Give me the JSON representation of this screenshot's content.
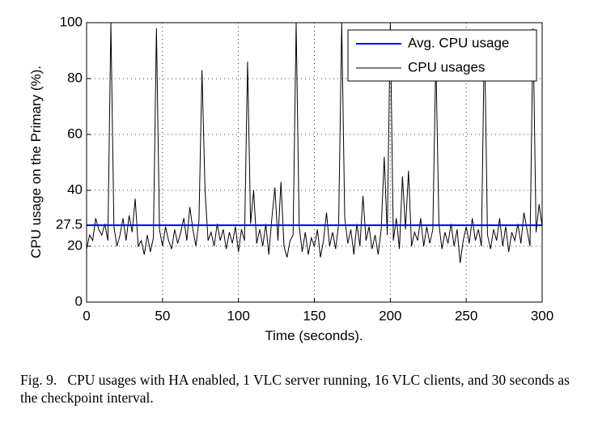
{
  "chart_data": {
    "type": "line",
    "xlabel": "Time (seconds).",
    "ylabel": "CPU usage on the Primary (%).",
    "xlim": [
      0,
      300
    ],
    "ylim": [
      0,
      100
    ],
    "xticks": [
      0,
      50,
      100,
      150,
      200,
      250,
      300
    ],
    "yticks": [
      0,
      20,
      27.5,
      40,
      60,
      80,
      100
    ],
    "grid": true,
    "legend": "upper right",
    "series": [
      {
        "name": "Avg. CPU usage",
        "color": "#0000ff",
        "x": [
          0,
          300
        ],
        "values": [
          27.5,
          27.5
        ]
      },
      {
        "name": "CPU usages",
        "color": "#000000",
        "x": [
          0,
          2,
          4,
          6,
          8,
          10,
          12,
          14,
          16,
          18,
          20,
          22,
          24,
          26,
          28,
          30,
          32,
          34,
          36,
          38,
          40,
          42,
          44,
          46,
          48,
          50,
          52,
          54,
          56,
          58,
          60,
          62,
          64,
          66,
          68,
          70,
          72,
          74,
          76,
          78,
          80,
          82,
          84,
          86,
          88,
          90,
          92,
          94,
          96,
          98,
          100,
          102,
          104,
          106,
          108,
          110,
          112,
          114,
          116,
          118,
          120,
          122,
          124,
          126,
          128,
          130,
          132,
          134,
          136,
          138,
          140,
          142,
          144,
          146,
          148,
          150,
          152,
          154,
          156,
          158,
          160,
          162,
          164,
          166,
          168,
          170,
          172,
          174,
          176,
          178,
          180,
          182,
          184,
          186,
          188,
          190,
          192,
          194,
          196,
          198,
          200,
          202,
          204,
          206,
          208,
          210,
          212,
          214,
          216,
          218,
          220,
          222,
          224,
          226,
          228,
          230,
          232,
          234,
          236,
          238,
          240,
          242,
          244,
          246,
          248,
          250,
          252,
          254,
          256,
          258,
          260,
          262,
          264,
          266,
          268,
          270,
          272,
          274,
          276,
          278,
          280,
          282,
          284,
          286,
          288,
          290,
          292,
          294,
          296,
          298,
          300
        ],
        "values": [
          19,
          24,
          22,
          30,
          26,
          24,
          28,
          22,
          100,
          27,
          20,
          24,
          30,
          22,
          31,
          25,
          37,
          20,
          22,
          17,
          24,
          18,
          23,
          98,
          26,
          20,
          27,
          22,
          19,
          26,
          21,
          25,
          30,
          22,
          34,
          26,
          20,
          29,
          83,
          40,
          22,
          25,
          20,
          28,
          22,
          26,
          19,
          25,
          21,
          27,
          18,
          26,
          22,
          86,
          28,
          40,
          21,
          26,
          20,
          28,
          17,
          30,
          41,
          22,
          43,
          20,
          16,
          22,
          24,
          100,
          27,
          18,
          25,
          17,
          23,
          20,
          26,
          16,
          22,
          32,
          20,
          25,
          19,
          28,
          100,
          30,
          21,
          26,
          17,
          28,
          20,
          38,
          22,
          27,
          19,
          24,
          17,
          26,
          52,
          24,
          100,
          22,
          30,
          19,
          45,
          26,
          47,
          20,
          25,
          22,
          30,
          20,
          27,
          21,
          26,
          88,
          28,
          19,
          25,
          21,
          28,
          20,
          26,
          14,
          22,
          27,
          21,
          30,
          22,
          26,
          20,
          97,
          24,
          19,
          26,
          22,
          30,
          20,
          27,
          18,
          25,
          22,
          28,
          21,
          32,
          26,
          20,
          98,
          25,
          35,
          27
        ]
      }
    ]
  },
  "caption": {
    "label": "Fig. 9.",
    "text": "CPU usages with HA enabled, 1 VLC server running, 16 VLC clients, and 30 seconds as the checkpoint interval."
  }
}
